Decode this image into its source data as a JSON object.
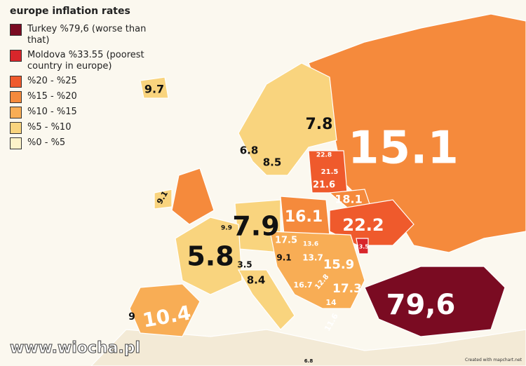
{
  "title": "europe inflation rates",
  "legend": [
    {
      "label": "Turkey %79,6 (worse than that)",
      "color": "#7a0b22"
    },
    {
      "label": "Moldova %33.55 (poorest country in europe)",
      "color": "#d8262b"
    },
    {
      "label": "%20 - %25",
      "color": "#ef5a2c"
    },
    {
      "label": "%15 - %20",
      "color": "#f58a3c"
    },
    {
      "label": "%10 - %15",
      "color": "#f8ad55"
    },
    {
      "label": "%5 - %10",
      "color": "#f9d47e"
    },
    {
      "label": "%0 - %5",
      "color": "#fdf3c9"
    }
  ],
  "map_labels": [
    "9.7",
    "7.8",
    "6.8",
    "8.5",
    "15.1",
    "22.8",
    "21.5",
    "21.6",
    "18.1",
    "9.1",
    "16.1",
    "7.9",
    "22.2",
    "9.9",
    "33.5",
    "17.5",
    "13.6",
    "5.8",
    "9.1",
    "13.7",
    "15.9",
    "3.5",
    "8.4",
    "16.7",
    "12.8",
    "17.3",
    "14",
    "79,6",
    "10.4",
    "9",
    "11.6",
    "6.8"
  ],
  "credit": "Created with mapchart.net",
  "watermark": "www.wiocha.pl"
}
